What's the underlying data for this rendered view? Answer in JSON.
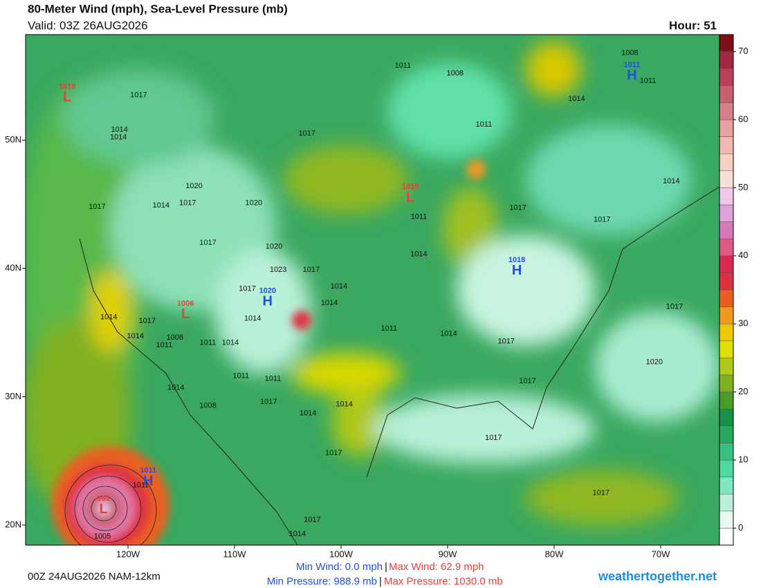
{
  "header": {
    "title": "80-Meter Wind (mph), Sea-Level Pressure (mb)",
    "valid": "Valid: 03Z 26AUG2026",
    "hour": "Hour: 51"
  },
  "map": {
    "xticks": [
      {
        "value": -120,
        "label": "120W"
      },
      {
        "value": -110,
        "label": "110W"
      },
      {
        "value": -100,
        "label": "100W"
      },
      {
        "value": -90,
        "label": "90W"
      },
      {
        "value": -80,
        "label": "80W"
      },
      {
        "value": -70,
        "label": "70W"
      }
    ],
    "yticks": [
      {
        "value": 50,
        "label": "50N"
      },
      {
        "value": 40,
        "label": "40N"
      },
      {
        "value": 30,
        "label": "30N"
      },
      {
        "value": 20,
        "label": "20N"
      }
    ],
    "pressure_centers": [
      {
        "letter": "L",
        "pressure": 1010,
        "color": "#e8403a",
        "lon": -125.7,
        "lat": 53.4
      },
      {
        "letter": "H",
        "pressure": 1011,
        "color": "#2050e0",
        "lon": -72.7,
        "lat": 55.1
      },
      {
        "letter": "L",
        "pressure": 1010,
        "color": "#e8403a",
        "lon": -93.5,
        "lat": 45.6
      },
      {
        "letter": "H",
        "pressure": 1018,
        "color": "#2050e0",
        "lon": -83.5,
        "lat": 39.9
      },
      {
        "letter": "H",
        "pressure": 1020,
        "color": "#2050e0",
        "lon": -106.9,
        "lat": 37.5
      },
      {
        "letter": "L",
        "pressure": 1006,
        "color": "#e8403a",
        "lon": -114.6,
        "lat": 36.5
      },
      {
        "letter": "H",
        "pressure": 1011,
        "color": "#2050e0",
        "lon": -118.1,
        "lat": 23.5
      },
      {
        "letter": "L",
        "pressure": 989,
        "color": "#e8403a",
        "lon": -122.3,
        "lat": 21.3
      }
    ],
    "isobar_labels": [
      {
        "value": 1017,
        "lon": -119.0,
        "lat": 53.5
      },
      {
        "value": 1014,
        "lon": -120.8,
        "lat": 50.8
      },
      {
        "value": 1014,
        "lon": -120.9,
        "lat": 50.2
      },
      {
        "value": 1011,
        "lon": -94.2,
        "lat": 55.8
      },
      {
        "value": 1008,
        "lon": -89.3,
        "lat": 55.2
      },
      {
        "value": 1008,
        "lon": -72.9,
        "lat": 56.8
      },
      {
        "value": 1011,
        "lon": -71.2,
        "lat": 54.6
      },
      {
        "value": 1014,
        "lon": -77.9,
        "lat": 53.2
      },
      {
        "value": 1011,
        "lon": -86.6,
        "lat": 51.2
      },
      {
        "value": 1017,
        "lon": -103.2,
        "lat": 50.5
      },
      {
        "value": 1020,
        "lon": -113.8,
        "lat": 46.4
      },
      {
        "value": 1017,
        "lon": -122.9,
        "lat": 44.8
      },
      {
        "value": 1014,
        "lon": -116.9,
        "lat": 44.9
      },
      {
        "value": 1017,
        "lon": -114.4,
        "lat": 45.1
      },
      {
        "value": 1020,
        "lon": -108.2,
        "lat": 45.1
      },
      {
        "value": 1017,
        "lon": -112.5,
        "lat": 42.0
      },
      {
        "value": 1020,
        "lon": -106.3,
        "lat": 41.7
      },
      {
        "value": 1023,
        "lon": -105.9,
        "lat": 39.9
      },
      {
        "value": 1017,
        "lon": -102.8,
        "lat": 39.9
      },
      {
        "value": 1014,
        "lon": -100.2,
        "lat": 38.6
      },
      {
        "value": 1017,
        "lon": -108.8,
        "lat": 38.4
      },
      {
        "value": 1014,
        "lon": -101.1,
        "lat": 37.3
      },
      {
        "value": 1014,
        "lon": -108.3,
        "lat": 36.1
      },
      {
        "value": 1014,
        "lon": -121.8,
        "lat": 36.2
      },
      {
        "value": 1017,
        "lon": -118.2,
        "lat": 35.9
      },
      {
        "value": 1014,
        "lon": -119.3,
        "lat": 34.7
      },
      {
        "value": 1008,
        "lon": -115.6,
        "lat": 34.6
      },
      {
        "value": 1011,
        "lon": -116.6,
        "lat": 34.0
      },
      {
        "value": 1011,
        "lon": -112.5,
        "lat": 34.2
      },
      {
        "value": 1014,
        "lon": -110.4,
        "lat": 34.2
      },
      {
        "value": 1011,
        "lon": -95.5,
        "lat": 35.3
      },
      {
        "value": 1014,
        "lon": -89.9,
        "lat": 34.9
      },
      {
        "value": 1017,
        "lon": -84.5,
        "lat": 34.3
      },
      {
        "value": 1014,
        "lon": -92.7,
        "lat": 41.1
      },
      {
        "value": 1011,
        "lon": -92.7,
        "lat": 44.0
      },
      {
        "value": 1017,
        "lon": -83.4,
        "lat": 44.7
      },
      {
        "value": 1017,
        "lon": -75.5,
        "lat": 43.8
      },
      {
        "value": 1014,
        "lon": -69.0,
        "lat": 46.8
      },
      {
        "value": 1017,
        "lon": -68.7,
        "lat": 37.0
      },
      {
        "value": 1020,
        "lon": -70.6,
        "lat": 32.7
      },
      {
        "value": 1017,
        "lon": -82.5,
        "lat": 31.2
      },
      {
        "value": 1011,
        "lon": -109.4,
        "lat": 31.6
      },
      {
        "value": 1011,
        "lon": -106.4,
        "lat": 31.4
      },
      {
        "value": 1014,
        "lon": -115.5,
        "lat": 30.7
      },
      {
        "value": 1017,
        "lon": -106.8,
        "lat": 29.6
      },
      {
        "value": 1008,
        "lon": -112.5,
        "lat": 29.3
      },
      {
        "value": 1014,
        "lon": -103.1,
        "lat": 28.7
      },
      {
        "value": 1014,
        "lon": -99.7,
        "lat": 29.4
      },
      {
        "value": 1017,
        "lon": -100.7,
        "lat": 25.6
      },
      {
        "value": 1017,
        "lon": -85.7,
        "lat": 26.8
      },
      {
        "value": 1017,
        "lon": -75.6,
        "lat": 22.5
      },
      {
        "value": 1011,
        "lon": -118.8,
        "lat": 23.1
      },
      {
        "value": 1005,
        "lon": -122.4,
        "lat": 19.1
      },
      {
        "value": 1017,
        "lon": -102.7,
        "lat": 20.4
      },
      {
        "value": 1014,
        "lon": -104.1,
        "lat": 19.3
      }
    ]
  },
  "colorbar": {
    "bins": [
      -2.5,
      0,
      2.5,
      5,
      7.5,
      10,
      12.5,
      15,
      17.5,
      20,
      22.5,
      25,
      27.5,
      30,
      32.5,
      35,
      37.5,
      40,
      42.5,
      45,
      47.5,
      50,
      52.5,
      55,
      57.5,
      60,
      62.5,
      65,
      67.5,
      70,
      72.5
    ],
    "colors": [
      "#ffffff",
      "#e8f8f0",
      "#b8f0d8",
      "#80e8c0",
      "#50d8a0",
      "#38c080",
      "#28a860",
      "#189048",
      "#4a9c28",
      "#80b020",
      "#b0c818",
      "#e0e000",
      "#f0c800",
      "#f09820",
      "#e86020",
      "#e03040",
      "#d82850",
      "#e05888",
      "#d878b8",
      "#e0a0d8",
      "#f0c8e8",
      "#f8e0d8",
      "#f8d0c0",
      "#f0b8b0",
      "#e8a0a0",
      "#d88088",
      "#c86070",
      "#b84058",
      "#a02840",
      "#801018"
    ],
    "ticks": [
      0,
      10,
      20,
      30,
      40,
      50,
      60,
      70
    ]
  },
  "footer": {
    "run": "00Z 24AUG2026 NAM-12km",
    "min_wind": "Min Wind:   0.0 mph",
    "max_wind": "Max Wind:  62.9 mph",
    "min_pressure": "Min Pressure: 988.9 mb",
    "max_pressure": "Max Pressure: 1030.0 mb",
    "separator": "|",
    "site": "weathertogether.net"
  }
}
